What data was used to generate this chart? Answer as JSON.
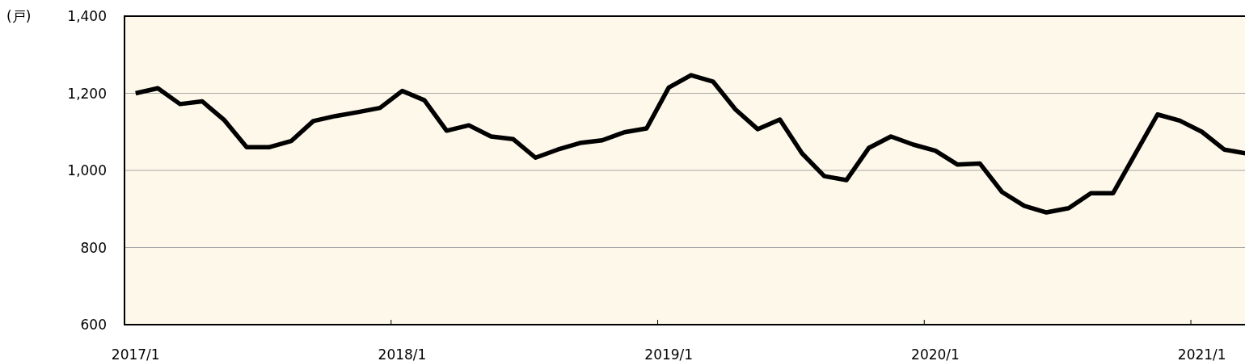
{
  "chart_data": {
    "type": "line",
    "ylabel": "(戸)",
    "categories": [
      "2017/1",
      null,
      null,
      null,
      null,
      null,
      null,
      null,
      null,
      null,
      null,
      null,
      "2018/1",
      null,
      null,
      null,
      null,
      null,
      null,
      null,
      null,
      null,
      null,
      null,
      "2019/1",
      null,
      null,
      null,
      null,
      null,
      null,
      null,
      null,
      null,
      null,
      null,
      "2020/1",
      null,
      null,
      null,
      null,
      null,
      null,
      null,
      null,
      null,
      null,
      null,
      "2021/1",
      null,
      null
    ],
    "series": [
      {
        "color": "#000000",
        "values": [
          1200,
          1213,
          1172,
          1179,
          1130,
          1060,
          1060,
          1076,
          1128,
          1141,
          1151,
          1162,
          1206,
          1182,
          1103,
          1117,
          1088,
          1081,
          1033,
          1054,
          1071,
          1078,
          1099,
          1109,
          1215,
          1247,
          1230,
          1158,
          1107,
          1132,
          1044,
          985,
          975,
          1058,
          1088,
          1067,
          1051,
          1015,
          1018,
          944,
          908,
          891,
          902,
          941,
          941,
          1043,
          1145,
          1129,
          1100,
          1054,
          1044
        ]
      }
    ],
    "ylim": [
      600,
      1400
    ],
    "yticks": [
      600,
      800,
      {
        "value": 1000,
        "label": "1,000"
      },
      {
        "value": 1200,
        "label": "1,200"
      },
      {
        "value": 1400,
        "label": "1,400"
      }
    ],
    "grid": "y",
    "line_style": "solid"
  }
}
